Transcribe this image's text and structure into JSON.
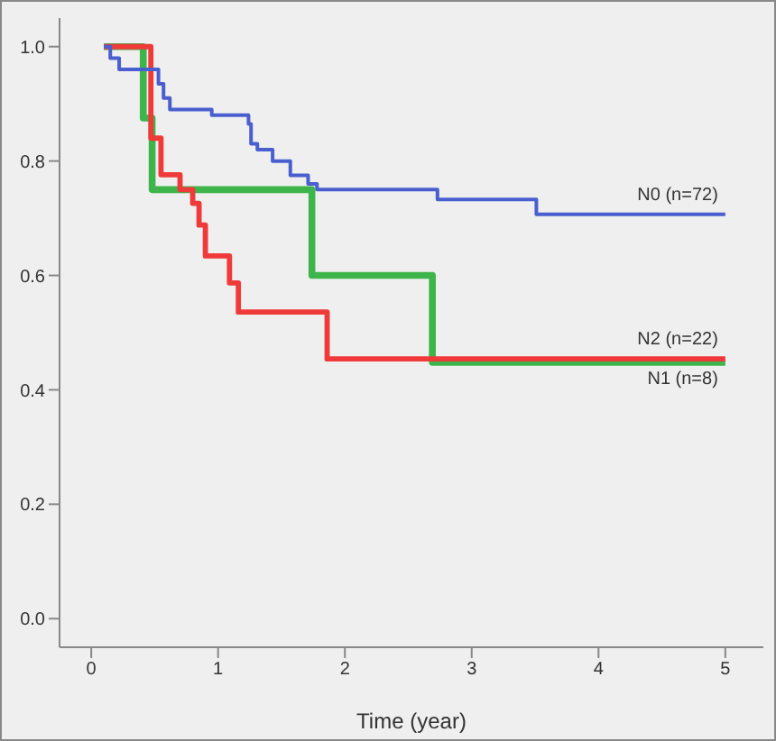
{
  "chart_data": {
    "type": "step",
    "xlabel": "Time (year)",
    "xlim": [
      -0.25,
      5.3
    ],
    "xticks": [
      0,
      1,
      2,
      3,
      4,
      5
    ],
    "ylim": [
      -0.05,
      1.05
    ],
    "yticks": [
      {
        "value": 0,
        "label": "0.0"
      },
      {
        "value": 0.2,
        "label": "0.2"
      },
      {
        "value": 0.4,
        "label": "0.4"
      },
      {
        "value": 0.6,
        "label": "0.6"
      },
      {
        "value": 0.8,
        "label": "0.8"
      },
      {
        "value": 1,
        "label": "1.0"
      }
    ],
    "marker": "none",
    "line_style": "solid",
    "series": [
      {
        "name": "N0 (n=72)",
        "color": "#4a5fcf",
        "x": [
          0.1,
          0.15,
          0.22,
          0.53,
          0.57,
          0.62,
          0.95,
          1.24,
          1.26,
          1.31,
          1.43,
          1.57,
          1.71,
          1.78,
          2.73,
          3.51,
          5
        ],
        "values": [
          1.0,
          0.98,
          0.96,
          0.935,
          0.91,
          0.89,
          0.88,
          0.865,
          0.83,
          0.82,
          0.8,
          0.775,
          0.76,
          0.75,
          0.733,
          0.707,
          0.707
        ]
      },
      {
        "name": "N2 (n=22)",
        "color": "#f03a3a",
        "x": [
          0.1,
          0.47,
          0.55,
          0.7,
          0.8,
          0.85,
          0.9,
          1.09,
          1.16,
          1.86,
          5
        ],
        "values": [
          1.0,
          0.84,
          0.776,
          0.75,
          0.726,
          0.688,
          0.634,
          0.587,
          0.536,
          0.454,
          0.454
        ]
      },
      {
        "name": "N1 (n=8)",
        "color": "#3db54a",
        "x": [
          0.1,
          0.41,
          0.48,
          1.74,
          2.69,
          5
        ],
        "values": [
          1.0,
          0.875,
          0.75,
          0.6,
          0.448,
          0.448
        ]
      }
    ]
  }
}
